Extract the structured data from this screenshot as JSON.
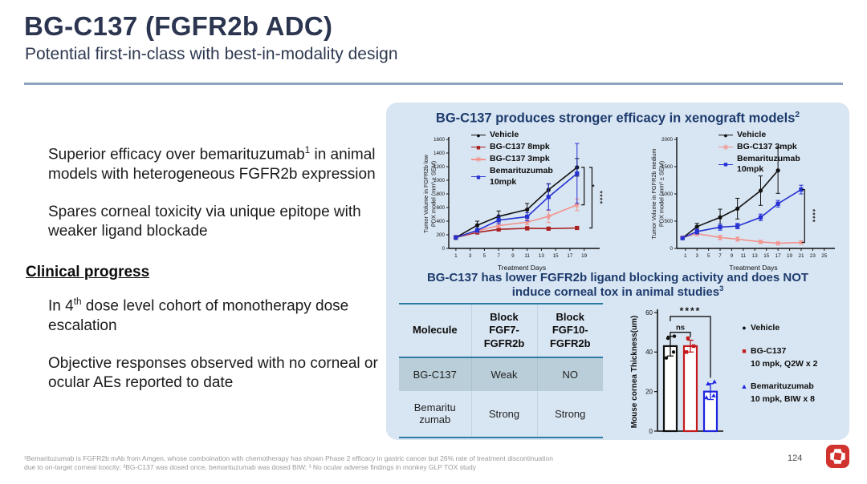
{
  "header": {
    "title": "BG-C137 (FGFR2b ADC)",
    "subtitle": "Potential first-in-class with best-in-modality design"
  },
  "left_panel": {
    "bullet_icon": "sparkle-icon",
    "bullet1": {
      "pre": "Superior efficacy over bemarituzumab",
      "sup": "1",
      "post": " in animal models with heterogeneous FGFR2b expression"
    },
    "bullet2": {
      "text": "Spares corneal toxicity via unique epitope with weaker ligand blockade"
    },
    "section_heading": "Clinical progress",
    "bullet3": {
      "pre": "In 4",
      "sup": "th",
      "post": " dose level cohort of monotherapy dose escalation"
    },
    "bullet4": {
      "text": "Objective responses observed with no corneal or ocular AEs reported to date"
    }
  },
  "right_panel": {
    "efficacy_title": {
      "text": "BG-C137 produces stronger efficacy in xenograft  models",
      "sup": "2"
    },
    "tox_title_line1": "BG-C137 has lower FGFR2b ligand blocking activity and does NOT",
    "tox_title_line2": {
      "text": "induce corneal tox in animal studies",
      "sup": "3"
    },
    "table": {
      "headers": [
        "Molecule",
        "Block\nFGF7-\nFGFR2b",
        "Block\nFGF10-\nFGFR2b"
      ],
      "rows": [
        {
          "molecule": "BG-C137",
          "fgf7": "Weak",
          "fgf10": "NO",
          "highlight": true
        },
        {
          "molecule": "Bemaritu\nzumab",
          "fgf7": "Strong",
          "fgf10": "Strong",
          "highlight": false
        }
      ]
    }
  },
  "chart_data": [
    {
      "type": "line",
      "title": "FGFR2b low PDX model",
      "ylabel_lines": [
        "Tumor Volume in FGFR2b low",
        "PDX model (mm³ ± SEM)"
      ],
      "xlabel": "Treatment Days",
      "xlim": [
        0,
        20.5
      ],
      "ylim": [
        0,
        1600
      ],
      "xticks": [
        1,
        3,
        5,
        7,
        9,
        11,
        13,
        15,
        17,
        19
      ],
      "yticks": [
        0,
        200,
        400,
        600,
        800,
        1000,
        1200,
        1400,
        1600
      ],
      "legend_position": "top-left",
      "series": [
        {
          "name": "Vehicle",
          "legend_label": "Vehicle",
          "color": "#111111",
          "marker": "circle",
          "x": [
            1,
            4,
            7,
            11,
            14,
            18
          ],
          "y": [
            160,
            340,
            470,
            570,
            860,
            1190
          ],
          "err": [
            30,
            60,
            80,
            90,
            90,
            130
          ]
        },
        {
          "name": "BG-C137 8mpk",
          "legend_label": "BG-C137 8mpk",
          "color": "#a8201f",
          "marker": "square",
          "x": [
            1,
            4,
            7,
            11,
            14,
            18
          ],
          "y": [
            160,
            235,
            280,
            295,
            290,
            300
          ],
          "err": [
            20,
            25,
            25,
            25,
            20,
            20
          ]
        },
        {
          "name": "BG-C137 3mpk",
          "legend_label": "BG-C137 3mpk",
          "color": "#f4928b",
          "marker": "star",
          "x": [
            1,
            4,
            7,
            11,
            14,
            18
          ],
          "y": [
            160,
            255,
            335,
            385,
            470,
            640
          ],
          "err": [
            20,
            25,
            30,
            35,
            90,
            85
          ]
        },
        {
          "name": "Bemarituzumab 10mpk",
          "legend_label": "Bemarituzumab\n10mpk",
          "color": "#2531d2",
          "marker": "square",
          "x": [
            1,
            4,
            7,
            11,
            14,
            18
          ],
          "y": [
            160,
            265,
            415,
            465,
            755,
            1100
          ],
          "err": [
            20,
            30,
            55,
            60,
            190,
            440
          ]
        }
      ],
      "brackets": [
        {
          "label": "*",
          "x": 19.0,
          "y1": 1190,
          "y2": 640
        },
        {
          "label": "****",
          "x": 20.1,
          "y1": 1190,
          "y2": 300
        }
      ]
    },
    {
      "type": "line",
      "title": "FGFR2b medium PDX model",
      "ylabel_lines": [
        "Tumor Volume in FGFR2b medium",
        "PDX model (mm³ ± SEM)"
      ],
      "xlabel": "Treatment Days",
      "xlim": [
        -0.5,
        26
      ],
      "ylim": [
        0,
        2000
      ],
      "xticks": [
        1,
        3,
        5,
        7,
        9,
        11,
        13,
        15,
        17,
        19,
        21,
        23,
        25
      ],
      "yticks": [
        0,
        500,
        1000,
        1500,
        2000
      ],
      "legend_position": "top-left",
      "series": [
        {
          "name": "Vehicle",
          "legend_label": "Vehicle",
          "color": "#111111",
          "marker": "circle",
          "x": [
            0.5,
            3,
            7,
            10,
            14,
            17
          ],
          "y": [
            190,
            400,
            570,
            730,
            1060,
            1430
          ],
          "err": [
            30,
            60,
            150,
            190,
            270,
            420
          ]
        },
        {
          "name": "BG-C137 3mpk",
          "legend_label": "BG-C137 3mpk",
          "color": "#f4928b",
          "marker": "star",
          "x": [
            0.5,
            3,
            7,
            10,
            14,
            17,
            21
          ],
          "y": [
            200,
            270,
            200,
            170,
            120,
            95,
            110
          ],
          "err": [
            20,
            35,
            40,
            35,
            25,
            20,
            25
          ]
        },
        {
          "name": "Bemarituzumab 10mpk",
          "legend_label": "Bemarituzumab\n10mpk",
          "color": "#2531d2",
          "marker": "square",
          "x": [
            0.5,
            3,
            7,
            10,
            14,
            17,
            21
          ],
          "y": [
            190,
            310,
            390,
            410,
            570,
            820,
            1080
          ],
          "err": [
            25,
            45,
            55,
            50,
            60,
            60,
            80
          ]
        }
      ],
      "brackets": [
        {
          "label": "****",
          "x": 21.6,
          "y1": 1080,
          "y2": 110
        }
      ]
    },
    {
      "type": "bar",
      "title": "Mouse cornea thickness",
      "ylabel_lines": [
        "Mouse cornea Thickness(um)"
      ],
      "ylim": [
        0,
        60
      ],
      "yticks": [
        0,
        20,
        40,
        60
      ],
      "bars": [
        {
          "name": "Vehicle",
          "color": "#111111",
          "marker": "circle",
          "value": 43,
          "err": 5,
          "scatter": [
            37,
            40,
            47,
            48
          ]
        },
        {
          "name": "BG-C137 10 mpk, Q2W x 2",
          "color": "#c41a1c",
          "marker": "square",
          "value": 43,
          "err": 3,
          "scatter": [
            40,
            43,
            47
          ]
        },
        {
          "name": "Bemarituzumab 10 mpk, BIW x 8",
          "color": "#1f24e0",
          "marker": "triangle",
          "value": 20,
          "err": 4,
          "scatter": [
            17,
            18,
            24,
            25
          ]
        }
      ],
      "legend": [
        {
          "label_lines": "Vehicle",
          "color": "#111111",
          "marker": "circle"
        },
        {
          "label_lines": "BG-C137\n10 mpk, Q2W x 2",
          "color": "#c41a1c",
          "marker": "square"
        },
        {
          "label_lines": "Bemarituzumab\n10 mpk, BIW x 8",
          "color": "#1f24e0",
          "marker": "triangle"
        }
      ],
      "brackets": [
        {
          "label": "ns",
          "x1": 0,
          "x2": 1,
          "y": 50
        },
        {
          "label": "****",
          "x1": 0,
          "x2": 2,
          "y": 58,
          "arm2_to": 27
        }
      ]
    }
  ],
  "footer": {
    "line1": "¹Bemarituzumab is FGFR2b mAb from Amgen, whose comboination with chemotherapy has shown Phase 2 efficacy in gastric cancer but 26% rate of treatment discontinuation",
    "line2": "due to on-target corneal toxicity; ²BG-C137 was dosed once, bemarituzumab was dosed BIW; ³ No ocular adverse findings in monkey GLP TOX study",
    "page": "124",
    "logo": "beigene-logo"
  },
  "colors": {
    "panel_bg": "#d8e5f2",
    "heading_navy": "#1d3b6d",
    "title_navy": "#2b3550",
    "accent_red": "#d03a2a",
    "table_rule_teal": "#2e7ba3",
    "table_highlight": "#b9ced9",
    "series_black": "#111111",
    "series_dark_red": "#a8201f",
    "series_salmon": "#f4928b",
    "series_blue": "#2531d2",
    "logo_red": "#d1332e"
  }
}
